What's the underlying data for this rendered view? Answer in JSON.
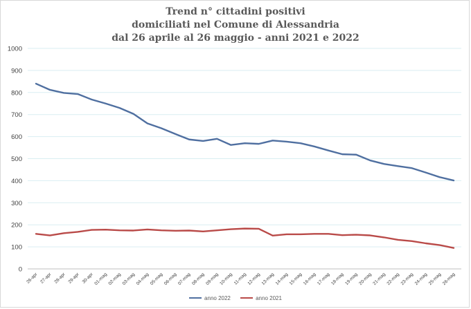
{
  "chart_data": {
    "type": "line",
    "title": [
      "Trend n° cittadini positivi",
      "domiciliati nel Comune di Alessandria",
      "dal 26 aprile al 26 maggio - anni 2021 e 2022"
    ],
    "xlabel": "",
    "ylabel": "",
    "ylim": [
      0,
      1000
    ],
    "yticks": [
      0,
      100,
      200,
      300,
      400,
      500,
      600,
      700,
      800,
      900,
      1000
    ],
    "grid": true,
    "legend_position": "bottom",
    "categories": [
      "26-apr",
      "27-apr",
      "28-apr",
      "29-apr",
      "30-apr",
      "01-mag",
      "02-mag",
      "03-mag",
      "04-mag",
      "05-mag",
      "06-mag",
      "07-mag",
      "08-mag",
      "09-mag",
      "10-mag",
      "11-mag",
      "12-mag",
      "13-mag",
      "14-mag",
      "15-mag",
      "16-mag",
      "17-mag",
      "18-mag",
      "19-mag",
      "20-mag",
      "21-mag",
      "22-mag",
      "23-mag",
      "24-mag",
      "25-mag",
      "26-mag"
    ],
    "series": [
      {
        "name": "anno 2022",
        "color": "#4f6fa0",
        "values": [
          840,
          812,
          798,
          793,
          768,
          750,
          730,
          703,
          660,
          638,
          612,
          587,
          580,
          590,
          562,
          570,
          567,
          582,
          577,
          570,
          555,
          537,
          520,
          518,
          492,
          476,
          466,
          457,
          437,
          416,
          401
        ]
      },
      {
        "name": "anno 2021",
        "color": "#b94a48",
        "values": [
          159,
          152,
          162,
          168,
          177,
          178,
          175,
          174,
          179,
          175,
          173,
          174,
          170,
          175,
          180,
          183,
          182,
          151,
          157,
          157,
          159,
          159,
          153,
          155,
          152,
          143,
          132,
          126,
          116,
          108,
          95
        ]
      }
    ]
  }
}
